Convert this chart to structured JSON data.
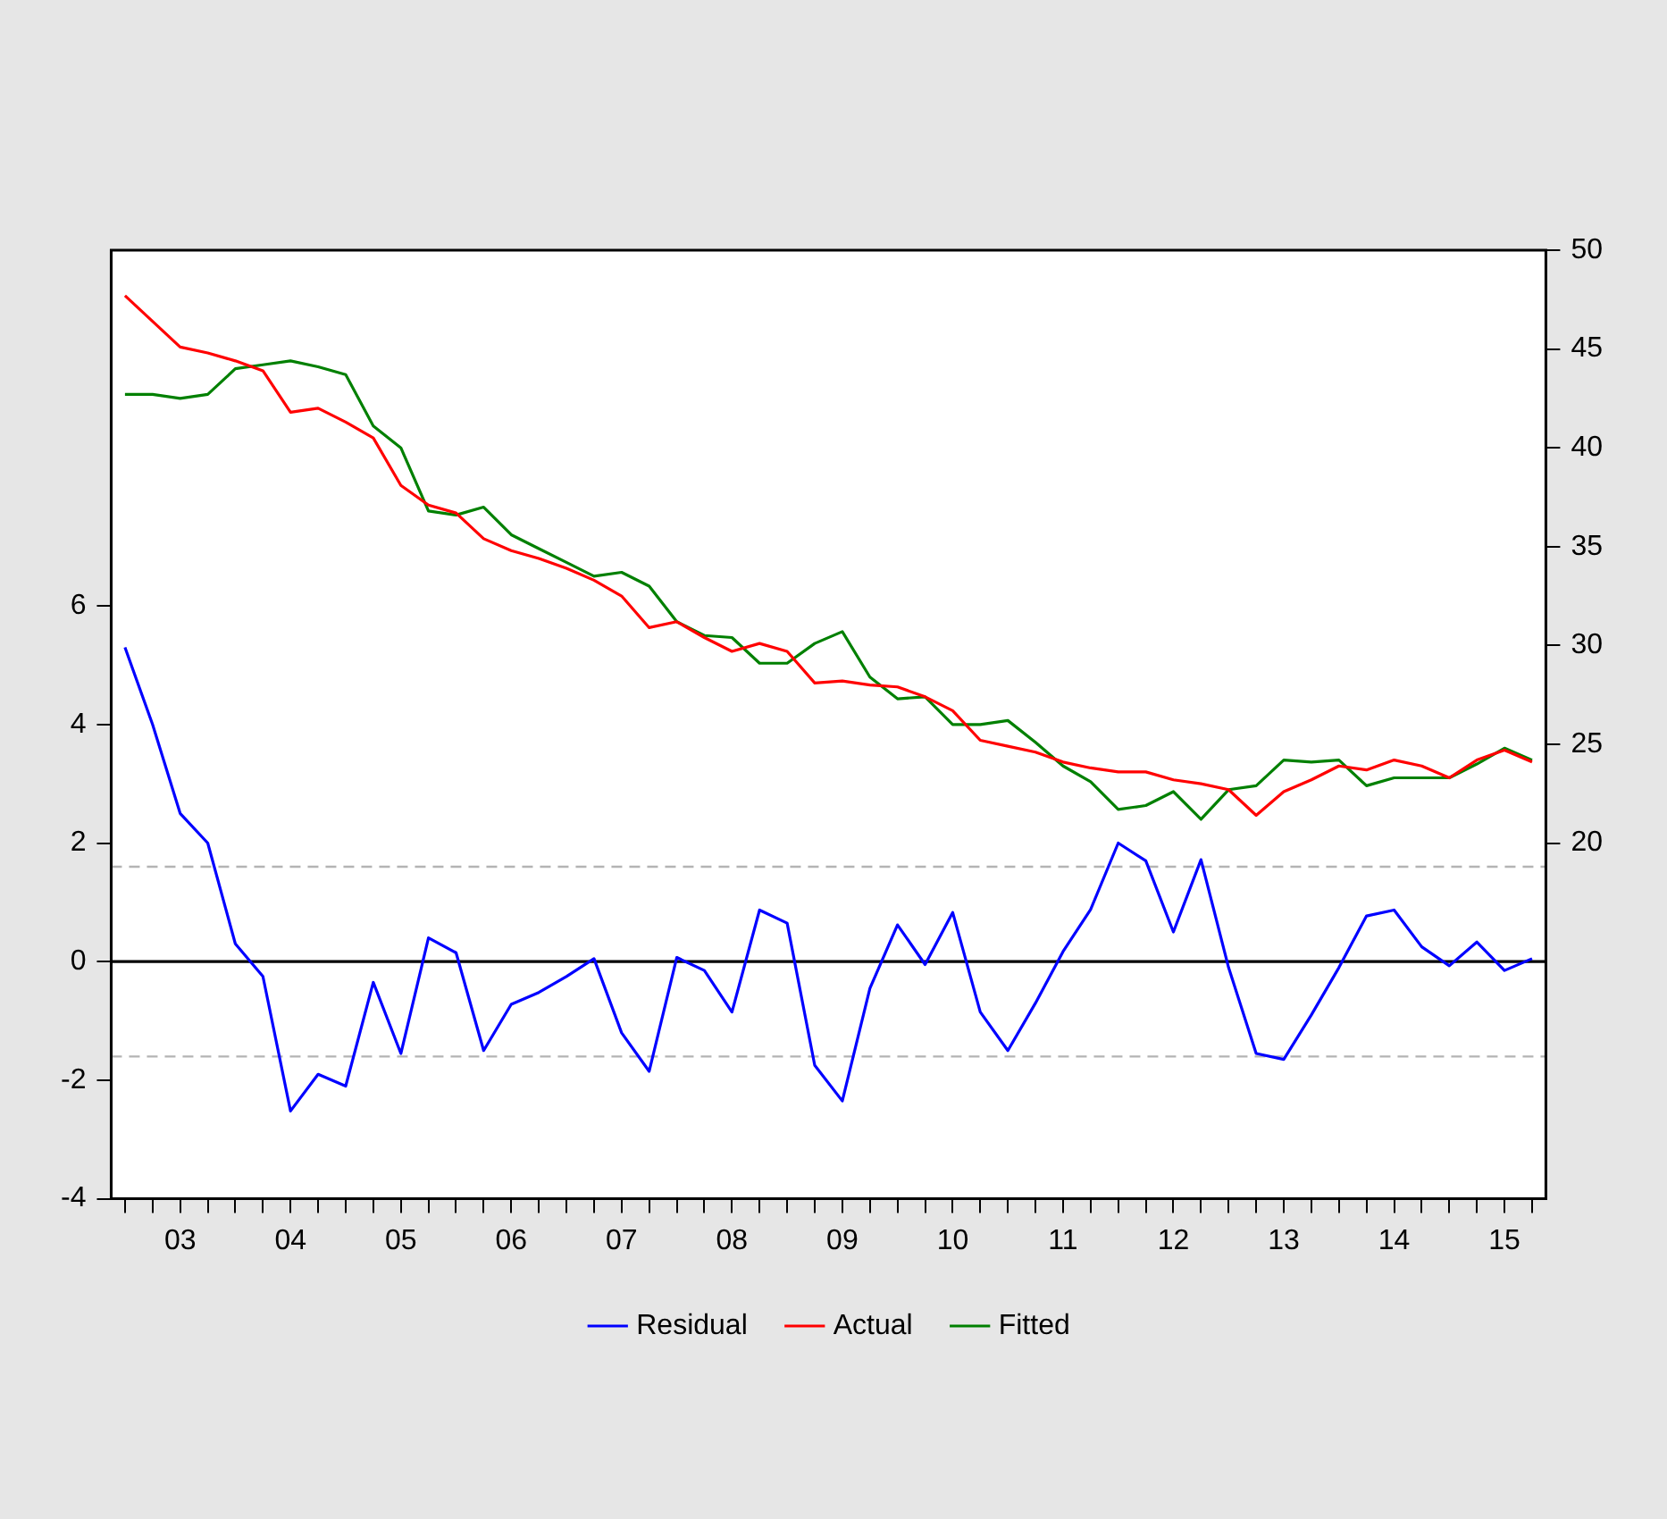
{
  "chart_data": {
    "type": "line",
    "legend": "bottom",
    "categories": [
      null,
      null,
      "03",
      null,
      null,
      null,
      "04",
      null,
      null,
      null,
      "05",
      null,
      null,
      null,
      "06",
      null,
      null,
      null,
      "07",
      null,
      null,
      null,
      "08",
      null,
      null,
      null,
      "09",
      null,
      null,
      null,
      "10",
      null,
      null,
      null,
      "11",
      null,
      null,
      null,
      "12",
      null,
      null,
      null,
      "13",
      null,
      null,
      null,
      "14",
      null,
      null,
      null,
      "15",
      null
    ],
    "series": [
      {
        "name": "Residual",
        "color": "#0000ff",
        "values": [
          5.3,
          4.0,
          2.5,
          2.0,
          0.3,
          -0.25,
          -2.52,
          -1.9,
          -2.1,
          -0.35,
          -1.55,
          0.4,
          0.15,
          -1.5,
          -0.72,
          -0.52,
          -0.25,
          0.05,
          -1.2,
          -1.85,
          0.07,
          -0.15,
          -0.85,
          0.87,
          0.65,
          -1.75,
          -2.35,
          -0.45,
          0.62,
          -0.05,
          0.83,
          -0.85,
          -1.5,
          -0.7,
          0.17,
          0.88,
          2.0,
          1.7,
          0.5,
          1.72,
          -0.1,
          -1.55,
          -1.65,
          -0.9,
          -0.1,
          0.77,
          0.87,
          0.25,
          -0.07,
          0.33,
          -0.15,
          0.05
        ]
      },
      {
        "name": "Actual",
        "color": "#ff0000",
        "axis": "y2",
        "values": [
          47.7,
          46.4,
          45.1,
          44.8,
          44.4,
          43.9,
          41.8,
          42.0,
          41.3,
          40.5,
          38.1,
          37.1,
          36.7,
          35.4,
          34.8,
          34.4,
          33.9,
          33.3,
          32.5,
          30.9,
          31.2,
          30.4,
          29.7,
          30.1,
          29.7,
          28.1,
          28.2,
          28.0,
          27.9,
          27.4,
          26.7,
          25.2,
          24.9,
          24.6,
          24.1,
          23.8,
          23.6,
          23.6,
          23.2,
          23.0,
          22.7,
          21.4,
          22.6,
          23.2,
          23.9,
          23.7,
          24.2,
          23.9,
          23.3,
          24.2,
          24.7,
          24.1
        ]
      },
      {
        "name": "Fitted",
        "color": "#008000",
        "axis": "y2",
        "values": [
          42.7,
          42.7,
          42.5,
          42.7,
          44.0,
          44.2,
          44.4,
          44.1,
          43.7,
          41.1,
          40.0,
          36.8,
          36.6,
          37.0,
          35.6,
          34.9,
          34.2,
          33.5,
          33.7,
          33.0,
          31.2,
          30.5,
          30.4,
          29.1,
          29.1,
          30.1,
          30.7,
          28.4,
          27.3,
          27.4,
          26.0,
          26.0,
          26.2,
          25.1,
          23.9,
          23.1,
          21.7,
          21.9,
          22.6,
          21.2,
          22.7,
          22.9,
          24.2,
          24.1,
          24.2,
          22.9,
          23.3,
          23.3,
          23.3,
          24.0,
          24.8,
          24.2
        ]
      }
    ],
    "ylim": [
      -4,
      12
    ],
    "yticks": [
      -4,
      -2,
      0,
      2,
      4,
      6
    ],
    "y2lim": [
      2,
      50
    ],
    "y2ticks": [
      20,
      25,
      30,
      35,
      40,
      45,
      50
    ],
    "ref_lines": [
      {
        "axis": "y",
        "value": 0,
        "color": "#000000",
        "line_style": "solid"
      },
      {
        "axis": "y",
        "value": 1.6,
        "color": "#b4b4b4",
        "line_style": "dashed"
      },
      {
        "axis": "y",
        "value": -1.6,
        "color": "#b4b4b4",
        "line_style": "dashed"
      }
    ]
  }
}
